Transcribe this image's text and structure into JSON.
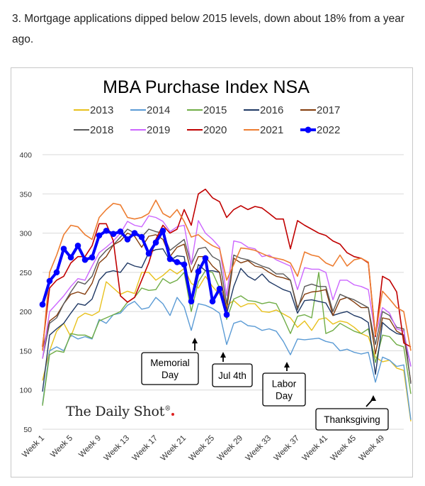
{
  "caption": "3. Mortgage applications dipped below 2015 levels, down about 18% from a year ago.",
  "logo": "The Daily Shot",
  "chart_data": {
    "type": "line",
    "title": "MBA Purchase Index NSA",
    "xlabel": "",
    "ylabel": "",
    "ylim": [
      50,
      400
    ],
    "yticks": [
      50,
      100,
      150,
      200,
      250,
      300,
      350,
      400
    ],
    "xlim": [
      1,
      52
    ],
    "xticks": [
      "Week 1",
      "Week 5",
      "Week 9",
      "Week 13",
      "Week 17",
      "Week 21",
      "Week 25",
      "Week 29",
      "Week 33",
      "Week 37",
      "Week 41",
      "Week 45",
      "Week 49"
    ],
    "xtick_weeks": [
      1,
      5,
      9,
      13,
      17,
      21,
      25,
      29,
      33,
      37,
      41,
      45,
      49
    ],
    "grid": "horizontal",
    "legend_position": "top",
    "annotations": [
      {
        "text": [
          "Memorial",
          "Day"
        ],
        "week": 22.5
      },
      {
        "text": [
          "Jul 4th"
        ],
        "week": 26.5
      },
      {
        "text": [
          "Labor",
          "Day"
        ],
        "week": 35.5
      },
      {
        "text": [
          "Thanksgiving"
        ],
        "week": 47.7
      }
    ],
    "series": [
      {
        "name": "2013",
        "color": "#e8c11c",
        "width": 1.4,
        "values": [
          112,
          150,
          175,
          185,
          168,
          192,
          198,
          195,
          200,
          238,
          230,
          222,
          226,
          223,
          250,
          250,
          240,
          246,
          254,
          248,
          255,
          236,
          230,
          245,
          232,
          222,
          208,
          214,
          206,
          210,
          210,
          200,
          199,
          202,
          197,
          192,
          180,
          188,
          176,
          190,
          192,
          184,
          188,
          186,
          180,
          172,
          168,
          142,
          136,
          138,
          128,
          125,
          60
        ]
      },
      {
        "name": "2014",
        "color": "#5b9bd5",
        "width": 1.4,
        "values": [
          82,
          150,
          155,
          150,
          170,
          165,
          168,
          165,
          190,
          185,
          196,
          198,
          208,
          213,
          203,
          205,
          218,
          210,
          195,
          218,
          206,
          176,
          210,
          208,
          204,
          198,
          158,
          185,
          188,
          182,
          181,
          176,
          178,
          175,
          162,
          145,
          165,
          164,
          165,
          166,
          162,
          160,
          150,
          152,
          148,
          146,
          148,
          110,
          142,
          138,
          130,
          132,
          62
        ]
      },
      {
        "name": "2015",
        "color": "#70ad47",
        "width": 1.4,
        "values": [
          80,
          145,
          150,
          148,
          172,
          170,
          170,
          166,
          188,
          192,
          196,
          200,
          212,
          218,
          230,
          227,
          228,
          242,
          236,
          240,
          250,
          200,
          238,
          252,
          250,
          230,
          190,
          216,
          220,
          214,
          213,
          210,
          212,
          210,
          192,
          172,
          194,
          196,
          192,
          250,
          172,
          176,
          185,
          180,
          175,
          172,
          178,
          135,
          170,
          168,
          158,
          155,
          95
        ]
      },
      {
        "name": "2016",
        "color": "#1f3864",
        "width": 1.4,
        "values": [
          98,
          170,
          178,
          185,
          198,
          210,
          208,
          216,
          240,
          250,
          252,
          250,
          262,
          258,
          256,
          275,
          279,
          280,
          265,
          271,
          270,
          217,
          260,
          252,
          252,
          250,
          197,
          232,
          255,
          245,
          240,
          248,
          238,
          233,
          228,
          225,
          198,
          214,
          215,
          213,
          211,
          195,
          198,
          200,
          195,
          192,
          186,
          120,
          186,
          178,
          172,
          170,
          130
        ]
      },
      {
        "name": "2017",
        "color": "#843c0c",
        "width": 1.4,
        "values": [
          152,
          188,
          195,
          210,
          222,
          225,
          222,
          236,
          262,
          270,
          285,
          290,
          300,
          296,
          282,
          296,
          298,
          292,
          270,
          282,
          286,
          250,
          270,
          270,
          258,
          250,
          202,
          268,
          262,
          265,
          258,
          256,
          250,
          245,
          243,
          240,
          205,
          222,
          225,
          226,
          228,
          195,
          215,
          218,
          212,
          205,
          205,
          146,
          192,
          190,
          175,
          170,
          110
        ]
      },
      {
        "name": "2018",
        "color": "#595959",
        "width": 1.4,
        "values": [
          140,
          185,
          192,
          210,
          225,
          238,
          235,
          245,
          268,
          278,
          285,
          295,
          305,
          300,
          295,
          305,
          302,
          300,
          278,
          285,
          292,
          260,
          280,
          282,
          270,
          265,
          210,
          272,
          268,
          266,
          262,
          258,
          255,
          248,
          248,
          240,
          202,
          232,
          235,
          232,
          232,
          200,
          222,
          218,
          215,
          210,
          205,
          158,
          200,
          195,
          180,
          178,
          108
        ]
      },
      {
        "name": "2019",
        "color": "#cc66ff",
        "width": 1.4,
        "values": [
          140,
          200,
          210,
          220,
          232,
          242,
          240,
          258,
          275,
          282,
          290,
          300,
          315,
          310,
          308,
          322,
          320,
          315,
          302,
          308,
          310,
          260,
          316,
          300,
          292,
          282,
          220,
          290,
          288,
          282,
          280,
          270,
          272,
          266,
          262,
          258,
          228,
          256,
          254,
          254,
          250,
          215,
          240,
          240,
          234,
          232,
          228,
          170,
          205,
          198,
          178,
          175,
          130
        ]
      },
      {
        "name": "2020",
        "color": "#c00000",
        "width": 1.6,
        "values": [
          155,
          230,
          240,
          245,
          262,
          270,
          270,
          284,
          312,
          312,
          290,
          220,
          212,
          218,
          240,
          262,
          292,
          310,
          300,
          305,
          330,
          310,
          350,
          356,
          345,
          340,
          320,
          330,
          335,
          330,
          334,
          332,
          325,
          318,
          318,
          280,
          316,
          310,
          305,
          300,
          297,
          290,
          286,
          275,
          270,
          268,
          262,
          168,
          245,
          240,
          225,
          160,
          155
        ]
      },
      {
        "name": "2021",
        "color": "#ed7d31",
        "width": 1.6,
        "values": [
          150,
          250,
          272,
          298,
          310,
          308,
          298,
          292,
          320,
          330,
          338,
          336,
          320,
          318,
          320,
          325,
          342,
          325,
          320,
          330,
          315,
          295,
          298,
          290,
          284,
          280,
          240,
          260,
          281,
          280,
          278,
          274,
          270,
          268,
          266,
          262,
          245,
          276,
          272,
          270,
          262,
          258,
          272,
          258,
          266,
          268,
          263,
          170,
          226,
          216,
          205,
          200,
          150
        ]
      },
      {
        "name": "2022",
        "color": "#0000ff",
        "width": 4,
        "marker": true,
        "values": [
          209,
          239,
          250,
          280,
          269,
          284,
          266,
          269,
          297,
          303,
          299,
          302,
          292,
          300,
          295,
          274,
          288,
          303,
          267,
          263,
          260,
          213,
          251,
          268,
          213,
          229,
          196
        ]
      }
    ]
  }
}
